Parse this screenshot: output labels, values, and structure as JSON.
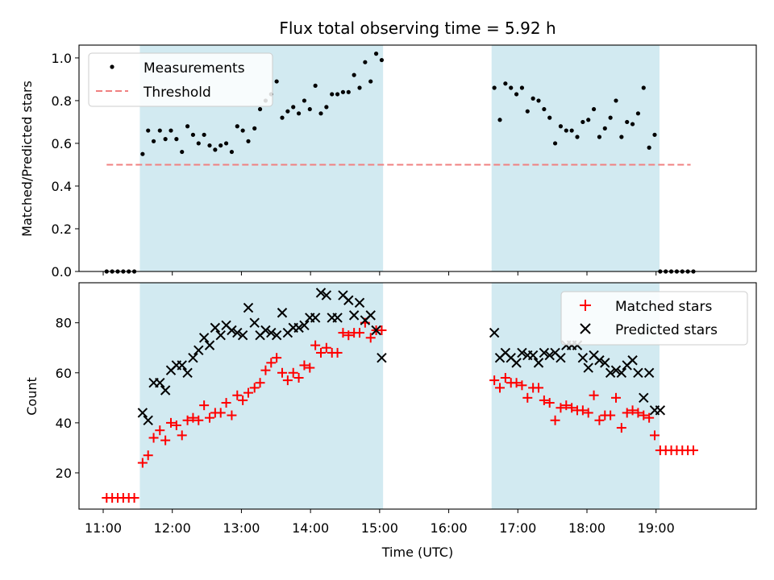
{
  "chart_data": [
    {
      "type": "scatter",
      "title": "Flux total observing time = 5.92 h",
      "xlabel": "",
      "ylabel": "Matched/Predicted stars",
      "xlim": [
        10.65,
        20.45
      ],
      "ylim": [
        0.0,
        1.06
      ],
      "y_ticks": [
        "0.0",
        "0.2",
        "0.4",
        "0.6",
        "0.8",
        "1.0"
      ],
      "y_tick_values": [
        0.0,
        0.2,
        0.4,
        0.6,
        0.8,
        1.0
      ],
      "shaded_intervals": [
        [
          11.53,
          15.05
        ],
        [
          16.62,
          19.05
        ]
      ],
      "shade_color": "#add8e6",
      "threshold": {
        "name": "Threshold",
        "value": 0.5,
        "x_range": [
          11.05,
          19.5
        ],
        "color": "#f08080"
      },
      "series": [
        {
          "name": "Measurements",
          "color": "#000000",
          "x": [
            11.05,
            11.13,
            11.21,
            11.29,
            11.37,
            11.45,
            11.57,
            11.65,
            11.73,
            11.82,
            11.9,
            11.98,
            12.06,
            12.14,
            12.22,
            12.3,
            12.38,
            12.46,
            12.54,
            12.62,
            12.7,
            12.78,
            12.86,
            12.94,
            13.02,
            13.1,
            13.19,
            13.27,
            13.35,
            13.43,
            13.51,
            13.59,
            13.67,
            13.75,
            13.83,
            13.91,
            13.99,
            14.07,
            14.15,
            14.23,
            14.31,
            14.39,
            14.47,
            14.55,
            14.63,
            14.71,
            14.79,
            14.87,
            14.95,
            15.03,
            16.66,
            16.74,
            16.82,
            16.9,
            16.98,
            17.06,
            17.14,
            17.22,
            17.3,
            17.38,
            17.46,
            17.54,
            17.62,
            17.7,
            17.78,
            17.86,
            17.94,
            18.02,
            18.1,
            18.18,
            18.26,
            18.34,
            18.42,
            18.5,
            18.58,
            18.66,
            18.74,
            18.82,
            18.9,
            18.98,
            19.06,
            19.14,
            19.22,
            19.3,
            19.38,
            19.46,
            19.54
          ],
          "y": [
            0.0,
            0.0,
            0.0,
            0.0,
            0.0,
            0.0,
            0.55,
            0.66,
            0.61,
            0.66,
            0.62,
            0.66,
            0.62,
            0.56,
            0.68,
            0.64,
            0.6,
            0.64,
            0.59,
            0.57,
            0.59,
            0.6,
            0.56,
            0.68,
            0.66,
            0.61,
            0.67,
            0.76,
            0.8,
            0.83,
            0.89,
            0.72,
            0.75,
            0.77,
            0.74,
            0.8,
            0.76,
            0.87,
            0.74,
            0.77,
            0.83,
            0.83,
            0.84,
            0.84,
            0.92,
            0.86,
            0.98,
            0.89,
            1.02,
            0.99,
            0.86,
            0.71,
            0.88,
            0.86,
            0.83,
            0.86,
            0.75,
            0.81,
            0.8,
            0.76,
            0.72,
            0.6,
            0.68,
            0.66,
            0.66,
            0.63,
            0.7,
            0.71,
            0.76,
            0.63,
            0.67,
            0.72,
            0.8,
            0.63,
            0.7,
            0.69,
            0.74,
            0.86,
            0.58,
            0.64,
            0.0,
            0.0,
            0.0,
            0.0,
            0.0,
            0.0,
            0.0
          ]
        }
      ],
      "legend": [
        "Measurements",
        "Threshold"
      ],
      "legend_position": "top-left"
    },
    {
      "type": "scatter",
      "title": "",
      "xlabel": "Time (UTC)",
      "ylabel": "Count",
      "xlim": [
        10.65,
        20.45
      ],
      "ylim": [
        5.5,
        96.0
      ],
      "x_ticks": [
        "11:00",
        "12:00",
        "13:00",
        "14:00",
        "15:00",
        "16:00",
        "17:00",
        "18:00",
        "19:00"
      ],
      "x_tick_values": [
        11,
        12,
        13,
        14,
        15,
        16,
        17,
        18,
        19
      ],
      "y_ticks": [
        "20",
        "40",
        "60",
        "80"
      ],
      "y_tick_values": [
        20,
        40,
        60,
        80
      ],
      "shaded_intervals": [
        [
          11.53,
          15.05
        ],
        [
          16.62,
          19.05
        ]
      ],
      "series": [
        {
          "name": "Matched stars",
          "marker": "plus",
          "color": "#ff0000",
          "x": [
            11.05,
            11.13,
            11.21,
            11.29,
            11.37,
            11.45,
            11.57,
            11.65,
            11.73,
            11.82,
            11.9,
            11.98,
            12.06,
            12.14,
            12.22,
            12.3,
            12.38,
            12.46,
            12.54,
            12.62,
            12.7,
            12.78,
            12.86,
            12.94,
            13.02,
            13.1,
            13.19,
            13.27,
            13.35,
            13.43,
            13.51,
            13.59,
            13.67,
            13.75,
            13.83,
            13.91,
            13.99,
            14.07,
            14.15,
            14.23,
            14.31,
            14.39,
            14.47,
            14.55,
            14.63,
            14.71,
            14.79,
            14.87,
            14.95,
            15.03,
            16.66,
            16.74,
            16.82,
            16.9,
            16.98,
            17.06,
            17.14,
            17.22,
            17.3,
            17.38,
            17.46,
            17.54,
            17.62,
            17.7,
            17.78,
            17.86,
            17.94,
            18.02,
            18.1,
            18.18,
            18.26,
            18.34,
            18.42,
            18.5,
            18.58,
            18.66,
            18.74,
            18.82,
            18.9,
            18.98,
            19.06,
            19.14,
            19.22,
            19.3,
            19.38,
            19.46,
            19.54
          ],
          "y": [
            10,
            10,
            10,
            10,
            10,
            10,
            24,
            27,
            34,
            37,
            33,
            40,
            39,
            35,
            41,
            42,
            41,
            47,
            42,
            44,
            44,
            48,
            43,
            51,
            49,
            52,
            54,
            56,
            61,
            64,
            66,
            60,
            57,
            60,
            58,
            63,
            62,
            71,
            68,
            70,
            68,
            68,
            76,
            75,
            76,
            76,
            80,
            74,
            77,
            77,
            57,
            54,
            58,
            56,
            56,
            55,
            50,
            54,
            54,
            49,
            48,
            41,
            46,
            47,
            46,
            45,
            45,
            44,
            51,
            41,
            43,
            43,
            50,
            38,
            44,
            45,
            44,
            43,
            42,
            35,
            29,
            29,
            29,
            29,
            29,
            29,
            29
          ]
        },
        {
          "name": "Predicted stars",
          "marker": "x",
          "color": "#000000",
          "x": [
            11.57,
            11.65,
            11.73,
            11.82,
            11.9,
            11.98,
            12.06,
            12.14,
            12.22,
            12.3,
            12.38,
            12.46,
            12.54,
            12.62,
            12.7,
            12.78,
            12.86,
            12.94,
            13.02,
            13.1,
            13.19,
            13.27,
            13.35,
            13.43,
            13.51,
            13.59,
            13.67,
            13.75,
            13.83,
            13.91,
            13.99,
            14.07,
            14.15,
            14.23,
            14.31,
            14.39,
            14.47,
            14.55,
            14.63,
            14.71,
            14.79,
            14.87,
            14.95,
            15.03,
            16.66,
            16.74,
            16.82,
            16.9,
            16.98,
            17.06,
            17.14,
            17.22,
            17.3,
            17.38,
            17.46,
            17.54,
            17.62,
            17.7,
            17.78,
            17.86,
            17.94,
            18.02,
            18.1,
            18.18,
            18.26,
            18.34,
            18.42,
            18.5,
            18.58,
            18.66,
            18.74,
            18.82,
            18.9,
            18.98,
            19.06
          ],
          "y": [
            44,
            41,
            56,
            56,
            53,
            61,
            63,
            63,
            60,
            66,
            69,
            74,
            71,
            78,
            75,
            79,
            77,
            76,
            75,
            86,
            80,
            75,
            77,
            76,
            75,
            84,
            76,
            78,
            78,
            79,
            82,
            82,
            92,
            91,
            82,
            82,
            91,
            89,
            83,
            88,
            81,
            83,
            77,
            66,
            76,
            66,
            68,
            66,
            64,
            68,
            67,
            67,
            64,
            68,
            67,
            68,
            66,
            71,
            71,
            71,
            66,
            62,
            67,
            65,
            64,
            60,
            61,
            60,
            63,
            65,
            60,
            50,
            60,
            45,
            45
          ]
        }
      ],
      "legend": [
        "Matched stars",
        "Predicted stars"
      ],
      "legend_position": "top-right"
    }
  ]
}
